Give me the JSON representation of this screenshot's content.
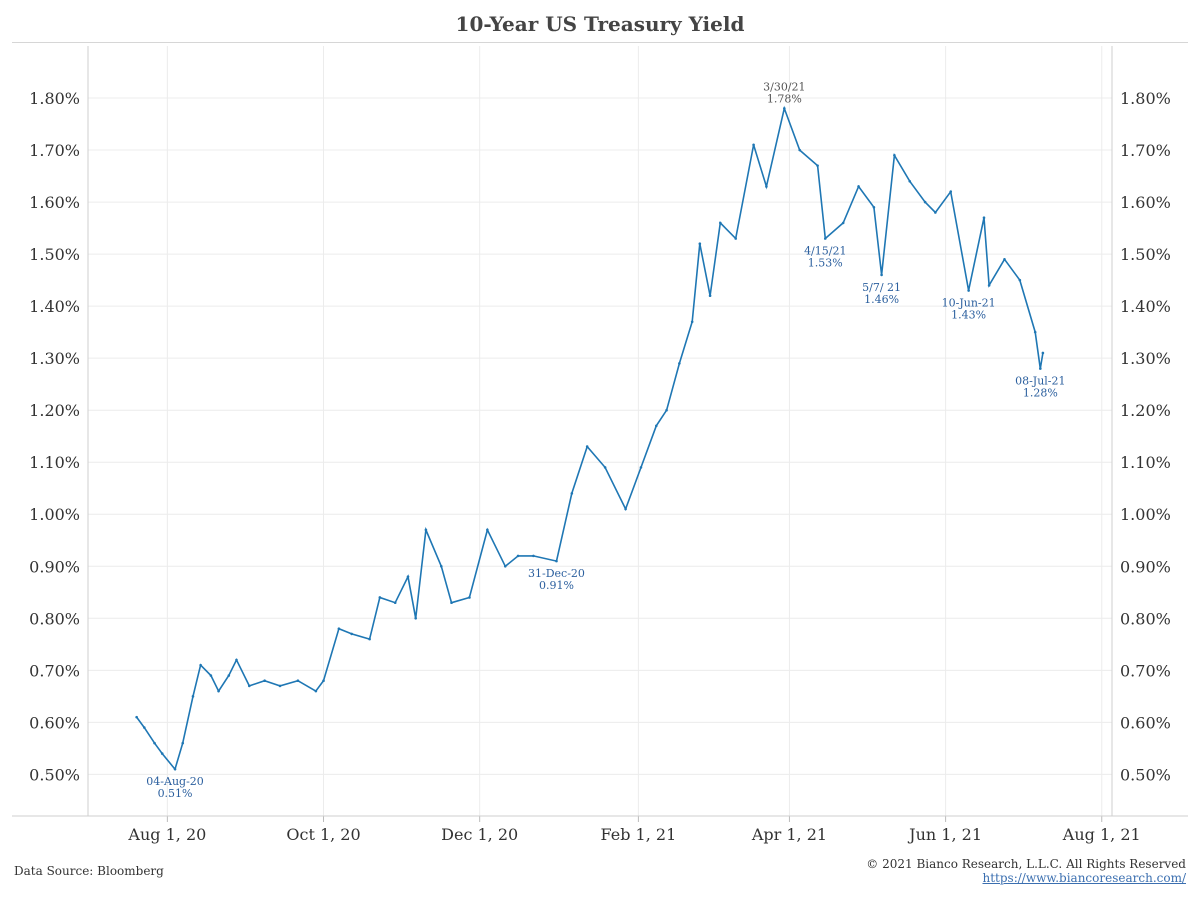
{
  "footer": {
    "source": "Data Source: Bloomberg",
    "copyright": "© 2021 Bianco Research, L.L.C. All Rights Reserved",
    "url": "https://www.biancoresearch.com/"
  },
  "chart_data": {
    "type": "line",
    "title": "10-Year US Treasury Yield",
    "xlabel": "",
    "ylabel": "",
    "ylim": [
      0.42,
      1.9
    ],
    "x_range": [
      "2020-07-01",
      "2021-08-05"
    ],
    "grid": true,
    "dual_y_axis": true,
    "series_color": "#1f77b4",
    "x_ticks": [
      {
        "date": "2020-08-01",
        "label": "Aug 1, 20"
      },
      {
        "date": "2020-10-01",
        "label": "Oct 1, 20"
      },
      {
        "date": "2020-12-01",
        "label": "Dec 1, 20"
      },
      {
        "date": "2021-02-01",
        "label": "Feb 1, 21"
      },
      {
        "date": "2021-04-01",
        "label": "Apr 1, 21"
      },
      {
        "date": "2021-06-01",
        "label": "Jun 1, 21"
      },
      {
        "date": "2021-08-01",
        "label": "Aug 1, 21"
      }
    ],
    "y_ticks": [
      {
        "value": 0.5,
        "label": "0.50%"
      },
      {
        "value": 0.6,
        "label": "0.60%"
      },
      {
        "value": 0.7,
        "label": "0.70%"
      },
      {
        "value": 0.8,
        "label": "0.80%"
      },
      {
        "value": 0.9,
        "label": "0.90%"
      },
      {
        "value": 1.0,
        "label": "1.00%"
      },
      {
        "value": 1.1,
        "label": "1.10%"
      },
      {
        "value": 1.2,
        "label": "1.20%"
      },
      {
        "value": 1.3,
        "label": "1.30%"
      },
      {
        "value": 1.4,
        "label": "1.40%"
      },
      {
        "value": 1.5,
        "label": "1.50%"
      },
      {
        "value": 1.6,
        "label": "1.60%"
      },
      {
        "value": 1.7,
        "label": "1.70%"
      },
      {
        "value": 1.8,
        "label": "1.80%"
      }
    ],
    "series": [
      {
        "values": [
          {
            "x": "2020-07-20",
            "y": 0.61
          },
          {
            "x": "2020-07-23",
            "y": 0.59
          },
          {
            "x": "2020-07-27",
            "y": 0.56
          },
          {
            "x": "2020-07-30",
            "y": 0.54
          },
          {
            "x": "2020-08-04",
            "y": 0.51
          },
          {
            "x": "2020-08-07",
            "y": 0.56
          },
          {
            "x": "2020-08-11",
            "y": 0.65
          },
          {
            "x": "2020-08-14",
            "y": 0.71
          },
          {
            "x": "2020-08-18",
            "y": 0.69
          },
          {
            "x": "2020-08-21",
            "y": 0.66
          },
          {
            "x": "2020-08-25",
            "y": 0.69
          },
          {
            "x": "2020-08-28",
            "y": 0.72
          },
          {
            "x": "2020-09-02",
            "y": 0.67
          },
          {
            "x": "2020-09-08",
            "y": 0.68
          },
          {
            "x": "2020-09-14",
            "y": 0.67
          },
          {
            "x": "2020-09-21",
            "y": 0.68
          },
          {
            "x": "2020-09-28",
            "y": 0.66
          },
          {
            "x": "2020-10-01",
            "y": 0.68
          },
          {
            "x": "2020-10-07",
            "y": 0.78
          },
          {
            "x": "2020-10-12",
            "y": 0.77
          },
          {
            "x": "2020-10-19",
            "y": 0.76
          },
          {
            "x": "2020-10-23",
            "y": 0.84
          },
          {
            "x": "2020-10-29",
            "y": 0.83
          },
          {
            "x": "2020-11-03",
            "y": 0.88
          },
          {
            "x": "2020-11-06",
            "y": 0.8
          },
          {
            "x": "2020-11-10",
            "y": 0.97
          },
          {
            "x": "2020-11-16",
            "y": 0.9
          },
          {
            "x": "2020-11-20",
            "y": 0.83
          },
          {
            "x": "2020-11-27",
            "y": 0.84
          },
          {
            "x": "2020-12-04",
            "y": 0.97
          },
          {
            "x": "2020-12-11",
            "y": 0.9
          },
          {
            "x": "2020-12-16",
            "y": 0.92
          },
          {
            "x": "2020-12-22",
            "y": 0.92
          },
          {
            "x": "2020-12-31",
            "y": 0.91
          },
          {
            "x": "2021-01-06",
            "y": 1.04
          },
          {
            "x": "2021-01-12",
            "y": 1.13
          },
          {
            "x": "2021-01-19",
            "y": 1.09
          },
          {
            "x": "2021-01-27",
            "y": 1.01
          },
          {
            "x": "2021-02-02",
            "y": 1.09
          },
          {
            "x": "2021-02-08",
            "y": 1.17
          },
          {
            "x": "2021-02-12",
            "y": 1.2
          },
          {
            "x": "2021-02-17",
            "y": 1.29
          },
          {
            "x": "2021-02-22",
            "y": 1.37
          },
          {
            "x": "2021-02-25",
            "y": 1.52
          },
          {
            "x": "2021-03-01",
            "y": 1.42
          },
          {
            "x": "2021-03-05",
            "y": 1.56
          },
          {
            "x": "2021-03-11",
            "y": 1.53
          },
          {
            "x": "2021-03-18",
            "y": 1.71
          },
          {
            "x": "2021-03-23",
            "y": 1.63
          },
          {
            "x": "2021-03-30",
            "y": 1.78
          },
          {
            "x": "2021-04-05",
            "y": 1.7
          },
          {
            "x": "2021-04-12",
            "y": 1.67
          },
          {
            "x": "2021-04-15",
            "y": 1.53
          },
          {
            "x": "2021-04-22",
            "y": 1.56
          },
          {
            "x": "2021-04-28",
            "y": 1.63
          },
          {
            "x": "2021-05-04",
            "y": 1.59
          },
          {
            "x": "2021-05-07",
            "y": 1.46
          },
          {
            "x": "2021-05-12",
            "y": 1.69
          },
          {
            "x": "2021-05-18",
            "y": 1.64
          },
          {
            "x": "2021-05-24",
            "y": 1.6
          },
          {
            "x": "2021-05-28",
            "y": 1.58
          },
          {
            "x": "2021-06-03",
            "y": 1.62
          },
          {
            "x": "2021-06-10",
            "y": 1.43
          },
          {
            "x": "2021-06-16",
            "y": 1.57
          },
          {
            "x": "2021-06-18",
            "y": 1.44
          },
          {
            "x": "2021-06-24",
            "y": 1.49
          },
          {
            "x": "2021-06-30",
            "y": 1.45
          },
          {
            "x": "2021-07-06",
            "y": 1.35
          },
          {
            "x": "2021-07-08",
            "y": 1.28
          },
          {
            "x": "2021-07-09",
            "y": 1.31
          }
        ]
      }
    ],
    "annotations": [
      {
        "x": "2020-08-04",
        "y": 0.51,
        "date_label": "04-Aug-20",
        "value_label": "0.51%",
        "position": "below"
      },
      {
        "x": "2020-12-31",
        "y": 0.91,
        "date_label": "31-Dec-20",
        "value_label": "0.91%",
        "position": "below"
      },
      {
        "x": "2021-03-30",
        "y": 1.78,
        "date_label": "3/30/21",
        "value_label": "1.78%",
        "position": "above"
      },
      {
        "x": "2021-04-15",
        "y": 1.53,
        "date_label": "4/15/21",
        "value_label": "1.53%",
        "position": "below"
      },
      {
        "x": "2021-05-07",
        "y": 1.46,
        "date_label": "5/7/ 21",
        "value_label": "1.46%",
        "position": "below"
      },
      {
        "x": "2021-06-10",
        "y": 1.43,
        "date_label": "10-Jun-21",
        "value_label": "1.43%",
        "position": "below"
      },
      {
        "x": "2021-07-08",
        "y": 1.28,
        "date_label": "08-Jul-21",
        "value_label": "1.28%",
        "position": "below"
      }
    ]
  }
}
